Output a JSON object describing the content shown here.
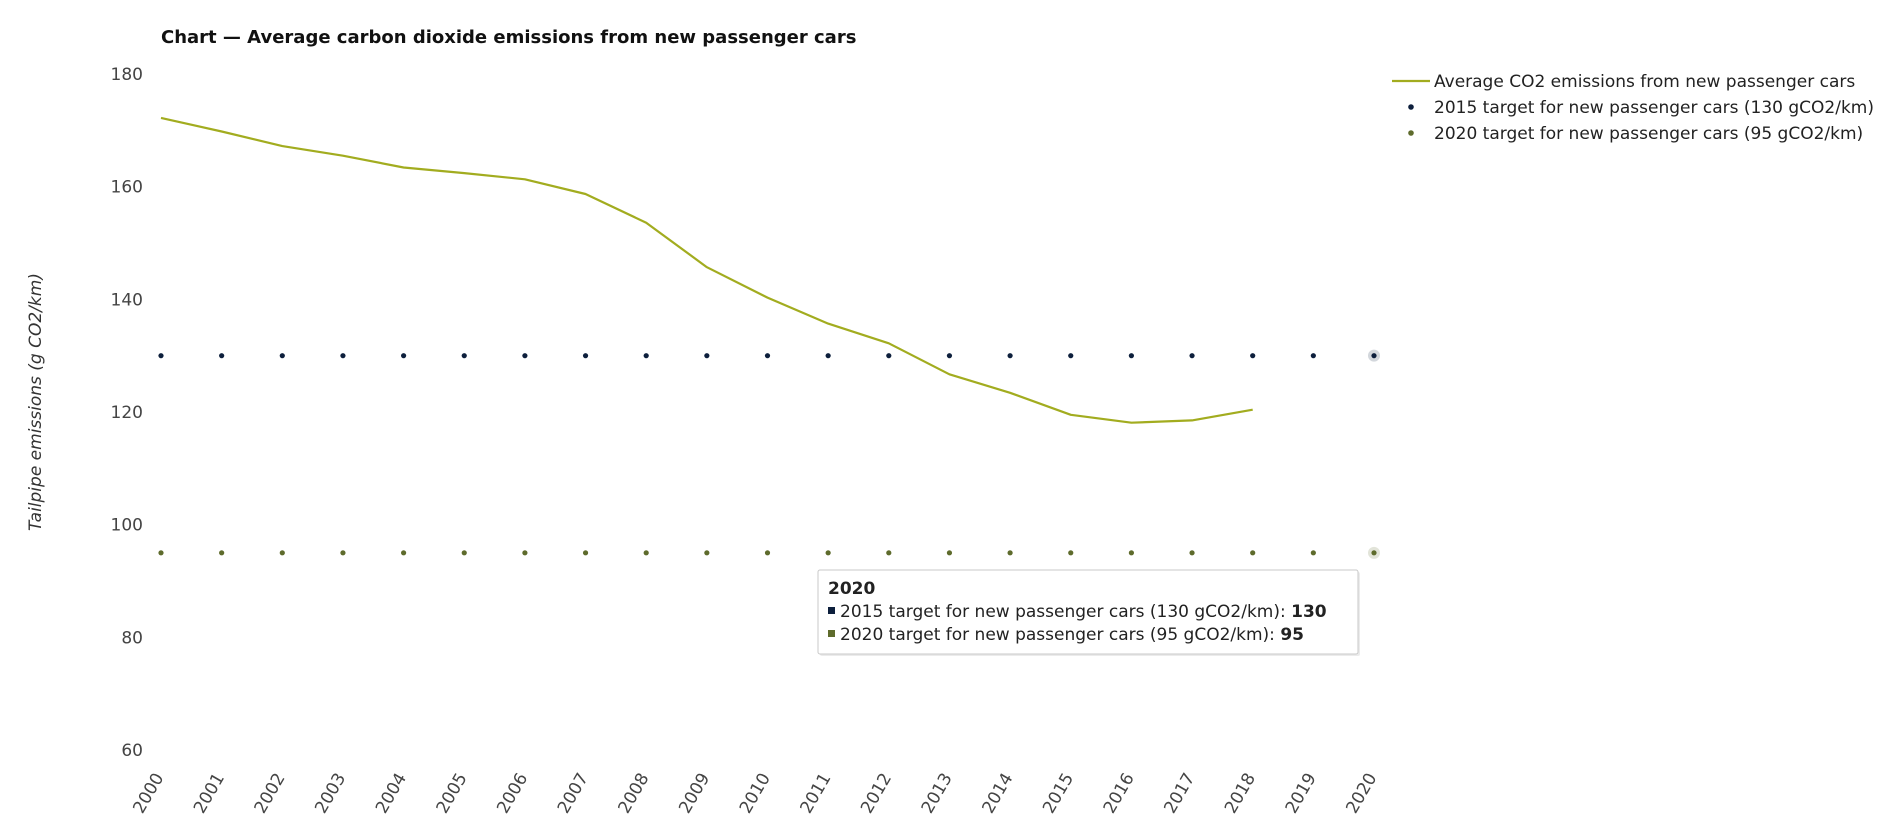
{
  "chart_data": {
    "type": "line",
    "title": "Chart — Average carbon dioxide emissions from new passenger cars",
    "ylabel": "Tailpipe emissions (g CO2/km)",
    "xlabel": "",
    "ylim": [
      60,
      180
    ],
    "yticks": [
      "60",
      "80",
      "100",
      "120",
      "140",
      "160",
      "180"
    ],
    "categories": [
      "2000",
      "2001",
      "2002",
      "2003",
      "2004",
      "2005",
      "2006",
      "2007",
      "2008",
      "2009",
      "2010",
      "2011",
      "2012",
      "2013",
      "2014",
      "2015",
      "2016",
      "2017",
      "2018",
      "2019",
      "2020"
    ],
    "grid": false,
    "legend_position": "top-right",
    "series": [
      {
        "name": "Average CO2 emissions from new passenger cars",
        "style": "line",
        "color": "#a2ac1f",
        "values": [
          172.2,
          169.8,
          167.2,
          165.5,
          163.4,
          162.4,
          161.3,
          158.7,
          153.6,
          145.7,
          140.3,
          135.7,
          132.2,
          126.7,
          123.4,
          119.5,
          118.1,
          118.5,
          120.4,
          null,
          null
        ]
      },
      {
        "name": "2015 target for new passenger cars (130 gCO2/km)",
        "style": "dots",
        "color": "#0d1f3c",
        "values": [
          130,
          130,
          130,
          130,
          130,
          130,
          130,
          130,
          130,
          130,
          130,
          130,
          130,
          130,
          130,
          130,
          130,
          130,
          130,
          130,
          130
        ]
      },
      {
        "name": "2020 target for new passenger cars (95 gCO2/km)",
        "style": "dots",
        "color": "#5e6b2c",
        "values": [
          95,
          95,
          95,
          95,
          95,
          95,
          95,
          95,
          95,
          95,
          95,
          95,
          95,
          95,
          95,
          95,
          95,
          95,
          95,
          95,
          95
        ]
      }
    ],
    "tooltip": {
      "header": "2020",
      "rows": [
        {
          "label": "2015 target for new passenger cars (130 gCO2/km): ",
          "value": "130",
          "color": "#0d1f3c"
        },
        {
          "label": "2020 target for new passenger cars (95 gCO2/km): ",
          "value": "95",
          "color": "#5e6b2c"
        }
      ]
    }
  }
}
